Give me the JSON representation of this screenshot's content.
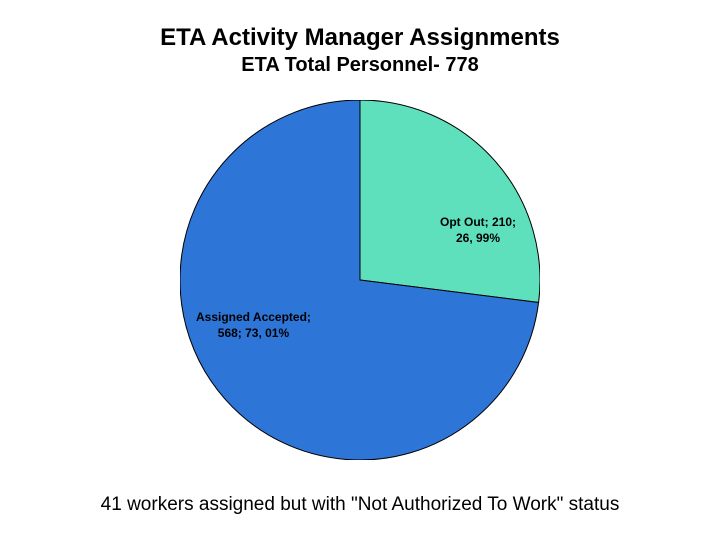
{
  "title": "ETA Activity Manager Assignments",
  "subtitle": "ETA Total Personnel- 778",
  "footer": "41 workers assigned but with \"Not Authorized To Work\" status",
  "chart": {
    "type": "pie",
    "diameter": 360,
    "start_angle_deg": -90,
    "background_color": "#ffffff",
    "stroke_color": "#000000",
    "stroke_width": 1,
    "slices": [
      {
        "name": "Opt Out",
        "count": 210,
        "percent": 26.99,
        "color": "#5fe0bd",
        "label_line1": "Opt Out; 210;",
        "label_line2": "26, 99%"
      },
      {
        "name": "Assigned Accepted",
        "count": 568,
        "percent": 73.01,
        "color": "#2e75d8",
        "label_line1": "Assigned Accepted;",
        "label_line2": "568; 73, 01%"
      }
    ],
    "label_fontsize": 12,
    "label_fontweight": "bold",
    "title_fontsize": 24,
    "subtitle_fontsize": 20,
    "footer_fontsize": 19
  }
}
